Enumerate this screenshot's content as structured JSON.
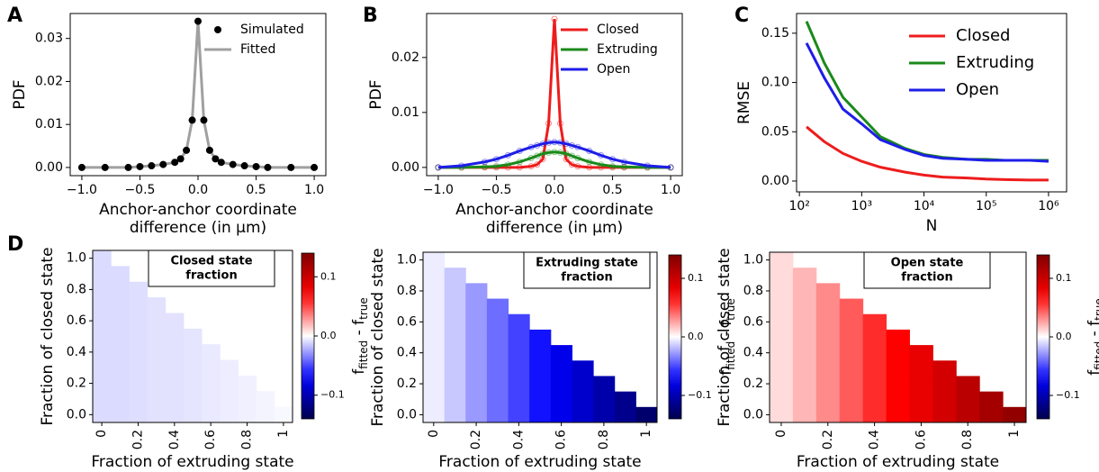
{
  "chart_data": [
    {
      "type": "line",
      "panel_label": "A",
      "ylabel": "PDF",
      "xlabel": [
        "Anchor-anchor coordinate",
        "difference (in μm)"
      ],
      "xlim": [
        -1.1,
        1.1
      ],
      "ylim": [
        -0.0019,
        0.0358
      ],
      "xticks": [
        {
          "value": -1,
          "label": "−1.0"
        },
        {
          "value": -0.5,
          "label": "−0.5"
        },
        {
          "value": 0,
          "label": "0.0"
        },
        0.5,
        {
          "value": 1,
          "label": "1.0"
        }
      ],
      "yticks": [
        {
          "value": 0,
          "label": "0.00"
        },
        {
          "value": 0.01,
          "label": "0.01"
        },
        {
          "value": 0.02,
          "label": "0.02"
        },
        {
          "value": 0.03,
          "label": "0.03"
        }
      ],
      "legend": "upper right",
      "x": [
        -1,
        -0.8,
        -0.6,
        -0.5,
        -0.4,
        -0.3,
        -0.2,
        -0.15,
        -0.1,
        -0.05,
        0,
        0.05,
        0.1,
        0.15,
        0.2,
        0.3,
        0.4,
        0.5,
        0.6,
        0.8,
        1
      ],
      "series": [
        {
          "name": "Fitted",
          "color": "#a0a0a0",
          "style": "line",
          "values": [
            0,
            0,
            0,
            0.0002,
            0.0004,
            0.0007,
            0.0012,
            0.002,
            0.004,
            0.011,
            0.034,
            0.011,
            0.004,
            0.002,
            0.0012,
            0.0007,
            0.0004,
            0.0002,
            0,
            0,
            0
          ]
        },
        {
          "name": "Simulated",
          "color": "#000000",
          "style": "markers",
          "values": [
            0,
            0,
            0,
            0.0002,
            0.0004,
            0.0007,
            0.0012,
            0.002,
            0.004,
            0.011,
            0.034,
            0.011,
            0.004,
            0.002,
            0.0012,
            0.0007,
            0.0004,
            0.0002,
            0,
            0,
            0
          ]
        }
      ]
    },
    {
      "type": "line",
      "panel_label": "B",
      "ylabel": "PDF",
      "xlabel": [
        "Anchor-anchor coordinate",
        "difference (in μm)"
      ],
      "xlim": [
        -1.1,
        1.1
      ],
      "ylim": [
        -0.0015,
        0.028
      ],
      "xticks": [
        {
          "value": -1,
          "label": "−1.0"
        },
        {
          "value": -0.5,
          "label": "−0.5"
        },
        {
          "value": 0,
          "label": "0.0"
        },
        0.5,
        {
          "value": 1,
          "label": "1.0"
        }
      ],
      "yticks": [
        {
          "value": 0,
          "label": "0.00"
        },
        {
          "value": 0.01,
          "label": "0.01"
        },
        {
          "value": 0.02,
          "label": "0.02"
        }
      ],
      "legend": "upper right",
      "x": [
        -1,
        -0.8,
        -0.6,
        -0.5,
        -0.4,
        -0.3,
        -0.2,
        -0.15,
        -0.1,
        -0.05,
        0,
        0.05,
        0.1,
        0.15,
        0.2,
        0.3,
        0.4,
        0.5,
        0.6,
        0.8,
        1
      ],
      "series": [
        {
          "name": "Closed",
          "color": "#ee1c1c",
          "style": "line+markers",
          "values": [
            0,
            0,
            0,
            0,
            0,
            0,
            0.0002,
            0.0005,
            0.0015,
            0.008,
            0.027,
            0.008,
            0.0015,
            0.0005,
            0.0002,
            0,
            0,
            0,
            0,
            0,
            0
          ]
        },
        {
          "name": "Extruding",
          "color": "#1a8a1a",
          "style": "line+markers",
          "values": [
            0,
            0,
            0.0001,
            0.0002,
            0.0005,
            0.001,
            0.0017,
            0.0021,
            0.0025,
            0.0027,
            0.0028,
            0.0027,
            0.0025,
            0.0021,
            0.0017,
            0.001,
            0.0005,
            0.0002,
            0.0001,
            0,
            0
          ]
        },
        {
          "name": "Open",
          "color": "#1e1ee8",
          "style": "line+markers",
          "values": [
            0,
            0.0003,
            0.001,
            0.0015,
            0.0022,
            0.003,
            0.0037,
            0.004,
            0.0043,
            0.0045,
            0.0046,
            0.0045,
            0.0043,
            0.004,
            0.0037,
            0.003,
            0.0022,
            0.0015,
            0.001,
            0.0003,
            0
          ]
        }
      ]
    },
    {
      "type": "line",
      "panel_label": "C",
      "ylabel": "RMSE",
      "xlabel": [
        "N"
      ],
      "xscale": "log",
      "xlim": [
        90,
        1950000
      ],
      "ylim": [
        -0.011,
        0.17
      ],
      "xticks": [
        {
          "value": 100,
          "label": "10²"
        },
        {
          "value": 1000,
          "label": "10³"
        },
        {
          "value": 10000,
          "label": "10⁴"
        },
        {
          "value": 100000,
          "label": "10⁵"
        },
        {
          "value": 1000000,
          "label": "10⁶"
        }
      ],
      "yticks": [
        {
          "value": 0,
          "label": "0.00"
        },
        {
          "value": 0.05,
          "label": "0.05"
        },
        {
          "value": 0.1,
          "label": "0.10"
        },
        {
          "value": 0.15,
          "label": "0.15"
        }
      ],
      "legend": "upper right",
      "x": [
        130,
        250,
        500,
        1000,
        2000,
        5000,
        10000,
        20000,
        50000,
        100000,
        200000,
        500000,
        1000000
      ],
      "series": [
        {
          "name": "Closed",
          "color": "#ee1c1c",
          "style": "line",
          "values": [
            0.055,
            0.04,
            0.028,
            0.02,
            0.014,
            0.009,
            0.006,
            0.004,
            0.003,
            0.002,
            0.0015,
            0.001,
            0.001
          ]
        },
        {
          "name": "Extruding",
          "color": "#1a8a1a",
          "style": "line",
          "values": [
            0.162,
            0.12,
            0.085,
            0.065,
            0.045,
            0.033,
            0.027,
            0.024,
            0.022,
            0.022,
            0.021,
            0.021,
            0.021
          ]
        },
        {
          "name": "Open",
          "color": "#1e1ee8",
          "style": "line",
          "values": [
            0.14,
            0.105,
            0.073,
            0.058,
            0.042,
            0.032,
            0.026,
            0.023,
            0.022,
            0.021,
            0.021,
            0.021,
            0.02
          ]
        }
      ]
    },
    {
      "type": "heatmap",
      "panel_label": "D",
      "ylabel": "Fraction of closed state",
      "xlabel": [
        "Fraction of extruding state"
      ],
      "annotation": [
        "Closed state",
        "fraction"
      ],
      "colormap": "seismic",
      "clim": [
        -0.14,
        0.14
      ],
      "colorbar_label": [
        "f",
        "fitted",
        " - f",
        "true"
      ],
      "colorbar_ticks": [
        {
          "value": -0.1,
          "label": "−0.1"
        },
        {
          "value": 0,
          "label": "0.0"
        },
        0.1
      ],
      "xlim": [
        -0.05,
        1.05
      ],
      "ylim": [
        -0.05,
        1.05
      ],
      "xticks": [
        0,
        0.2,
        0.4,
        0.6,
        0.8,
        1
      ],
      "yticks": [
        {
          "value": 0,
          "label": "0.0"
        },
        0.2,
        0.4,
        0.6,
        0.8,
        {
          "value": 1,
          "label": "1.0"
        }
      ],
      "x": [
        0,
        0.1,
        0.2,
        0.3,
        0.4,
        0.5,
        0.6,
        0.7,
        0.8,
        0.9,
        1
      ],
      "y": [
        0,
        0.1,
        0.2,
        0.3,
        0.4,
        0.5,
        0.6,
        0.7,
        0.8,
        0.9,
        1
      ],
      "z": [
        [
          -0.01,
          -0.01,
          -0.009,
          -0.008,
          -0.008,
          -0.007,
          -0.006,
          -0.005,
          -0.004,
          -0.003,
          -0.002
        ],
        [
          -0.01,
          -0.01,
          -0.009,
          -0.008,
          -0.008,
          -0.007,
          -0.006,
          -0.005,
          -0.004,
          -0.003,
          null
        ],
        [
          -0.01,
          -0.01,
          -0.009,
          -0.008,
          -0.008,
          -0.007,
          -0.006,
          -0.005,
          -0.004,
          null,
          null
        ],
        [
          -0.01,
          -0.01,
          -0.009,
          -0.008,
          -0.008,
          -0.007,
          -0.006,
          -0.005,
          null,
          null,
          null
        ],
        [
          -0.01,
          -0.01,
          -0.009,
          -0.008,
          -0.008,
          -0.007,
          -0.006,
          null,
          null,
          null,
          null
        ],
        [
          -0.01,
          -0.01,
          -0.009,
          -0.008,
          -0.008,
          -0.007,
          null,
          null,
          null,
          null,
          null
        ],
        [
          -0.01,
          -0.01,
          -0.009,
          -0.008,
          -0.008,
          null,
          null,
          null,
          null,
          null,
          null
        ],
        [
          -0.01,
          -0.01,
          -0.009,
          -0.008,
          null,
          null,
          null,
          null,
          null,
          null,
          null
        ],
        [
          -0.01,
          -0.01,
          -0.009,
          null,
          null,
          null,
          null,
          null,
          null,
          null,
          null
        ],
        [
          -0.01,
          -0.01,
          null,
          null,
          null,
          null,
          null,
          null,
          null,
          null,
          null
        ],
        [
          -0.01,
          null,
          null,
          null,
          null,
          null,
          null,
          null,
          null,
          null,
          null
        ]
      ]
    },
    {
      "type": "heatmap",
      "ylabel": "Fraction of closed state",
      "xlabel": [
        "Fraction of extruding state"
      ],
      "annotation": [
        "Extruding state",
        "fraction"
      ],
      "colormap": "seismic",
      "clim": [
        -0.14,
        0.14
      ],
      "colorbar_label": [
        "f",
        "fitted",
        " - f",
        "true"
      ],
      "colorbar_ticks": [
        {
          "value": -0.1,
          "label": "−0.1"
        },
        {
          "value": 0,
          "label": "0.0"
        },
        0.1
      ],
      "xlim": [
        -0.05,
        1.05
      ],
      "ylim": [
        -0.05,
        1.05
      ],
      "xticks": [
        0,
        0.2,
        0.4,
        0.6,
        0.8,
        1
      ],
      "yticks": [
        {
          "value": 0,
          "label": "0.0"
        },
        0.2,
        0.4,
        0.6,
        0.8,
        {
          "value": 1,
          "label": "1.0"
        }
      ],
      "x": [
        0,
        0.1,
        0.2,
        0.3,
        0.4,
        0.5,
        0.6,
        0.7,
        0.8,
        0.9,
        1
      ],
      "y": [
        0,
        0.1,
        0.2,
        0.3,
        0.4,
        0.5,
        0.6,
        0.7,
        0.8,
        0.9,
        1
      ],
      "z": [
        [
          -0.005,
          -0.015,
          -0.028,
          -0.04,
          -0.052,
          -0.065,
          -0.078,
          -0.09,
          -0.103,
          -0.115,
          -0.128
        ],
        [
          -0.005,
          -0.015,
          -0.028,
          -0.04,
          -0.052,
          -0.065,
          -0.078,
          -0.09,
          -0.103,
          -0.115,
          null
        ],
        [
          -0.005,
          -0.015,
          -0.028,
          -0.04,
          -0.052,
          -0.065,
          -0.078,
          -0.09,
          -0.103,
          null,
          null
        ],
        [
          -0.005,
          -0.015,
          -0.028,
          -0.04,
          -0.052,
          -0.065,
          -0.078,
          -0.09,
          null,
          null,
          null
        ],
        [
          -0.005,
          -0.015,
          -0.028,
          -0.04,
          -0.052,
          -0.065,
          -0.078,
          null,
          null,
          null,
          null
        ],
        [
          -0.005,
          -0.015,
          -0.028,
          -0.04,
          -0.052,
          -0.065,
          null,
          null,
          null,
          null,
          null
        ],
        [
          -0.005,
          -0.015,
          -0.028,
          -0.04,
          -0.052,
          null,
          null,
          null,
          null,
          null,
          null
        ],
        [
          -0.005,
          -0.015,
          -0.028,
          -0.04,
          null,
          null,
          null,
          null,
          null,
          null,
          null
        ],
        [
          -0.005,
          -0.015,
          -0.028,
          null,
          null,
          null,
          null,
          null,
          null,
          null,
          null
        ],
        [
          -0.005,
          -0.015,
          null,
          null,
          null,
          null,
          null,
          null,
          null,
          null,
          null
        ],
        [
          -0.005,
          null,
          null,
          null,
          null,
          null,
          null,
          null,
          null,
          null,
          null
        ]
      ]
    },
    {
      "type": "heatmap",
      "ylabel": "Fraction of closed state",
      "xlabel": [
        "Fraction of extruding state"
      ],
      "annotation": [
        "Open state",
        "fraction"
      ],
      "colormap": "seismic",
      "clim": [
        -0.14,
        0.14
      ],
      "colorbar_label": [
        "f",
        "fitted",
        " - f",
        "true"
      ],
      "colorbar_ticks": [
        {
          "value": -0.1,
          "label": "−0.1"
        },
        {
          "value": 0,
          "label": "0.0"
        },
        0.1
      ],
      "xlim": [
        -0.05,
        1.05
      ],
      "ylim": [
        -0.05,
        1.05
      ],
      "xticks": [
        0,
        0.2,
        0.4,
        0.6,
        0.8,
        1
      ],
      "yticks": [
        {
          "value": 0,
          "label": "0.0"
        },
        0.2,
        0.4,
        0.6,
        0.8,
        {
          "value": 1,
          "label": "1.0"
        }
      ],
      "x": [
        0,
        0.1,
        0.2,
        0.3,
        0.4,
        0.5,
        0.6,
        0.7,
        0.8,
        0.9,
        1
      ],
      "y": [
        0,
        0.1,
        0.2,
        0.3,
        0.4,
        0.5,
        0.6,
        0.7,
        0.8,
        0.9,
        1
      ],
      "z": [
        [
          0.01,
          0.02,
          0.032,
          0.045,
          0.058,
          0.07,
          0.082,
          0.095,
          0.108,
          0.12,
          0.13
        ],
        [
          0.01,
          0.02,
          0.032,
          0.045,
          0.058,
          0.07,
          0.082,
          0.095,
          0.108,
          0.12,
          null
        ],
        [
          0.01,
          0.02,
          0.032,
          0.045,
          0.058,
          0.07,
          0.082,
          0.095,
          0.108,
          null,
          null
        ],
        [
          0.01,
          0.02,
          0.032,
          0.045,
          0.058,
          0.07,
          0.082,
          0.095,
          null,
          null,
          null
        ],
        [
          0.01,
          0.02,
          0.032,
          0.045,
          0.058,
          0.07,
          0.082,
          null,
          null,
          null,
          null
        ],
        [
          0.01,
          0.02,
          0.032,
          0.045,
          0.058,
          0.07,
          null,
          null,
          null,
          null,
          null
        ],
        [
          0.01,
          0.02,
          0.032,
          0.045,
          0.058,
          null,
          null,
          null,
          null,
          null,
          null
        ],
        [
          0.01,
          0.02,
          0.032,
          0.045,
          null,
          null,
          null,
          null,
          null,
          null,
          null
        ],
        [
          0.01,
          0.02,
          0.032,
          null,
          null,
          null,
          null,
          null,
          null,
          null,
          null
        ],
        [
          0.01,
          0.02,
          null,
          null,
          null,
          null,
          null,
          null,
          null,
          null,
          null
        ],
        [
          0.01,
          null,
          null,
          null,
          null,
          null,
          null,
          null,
          null,
          null,
          null
        ]
      ]
    }
  ]
}
